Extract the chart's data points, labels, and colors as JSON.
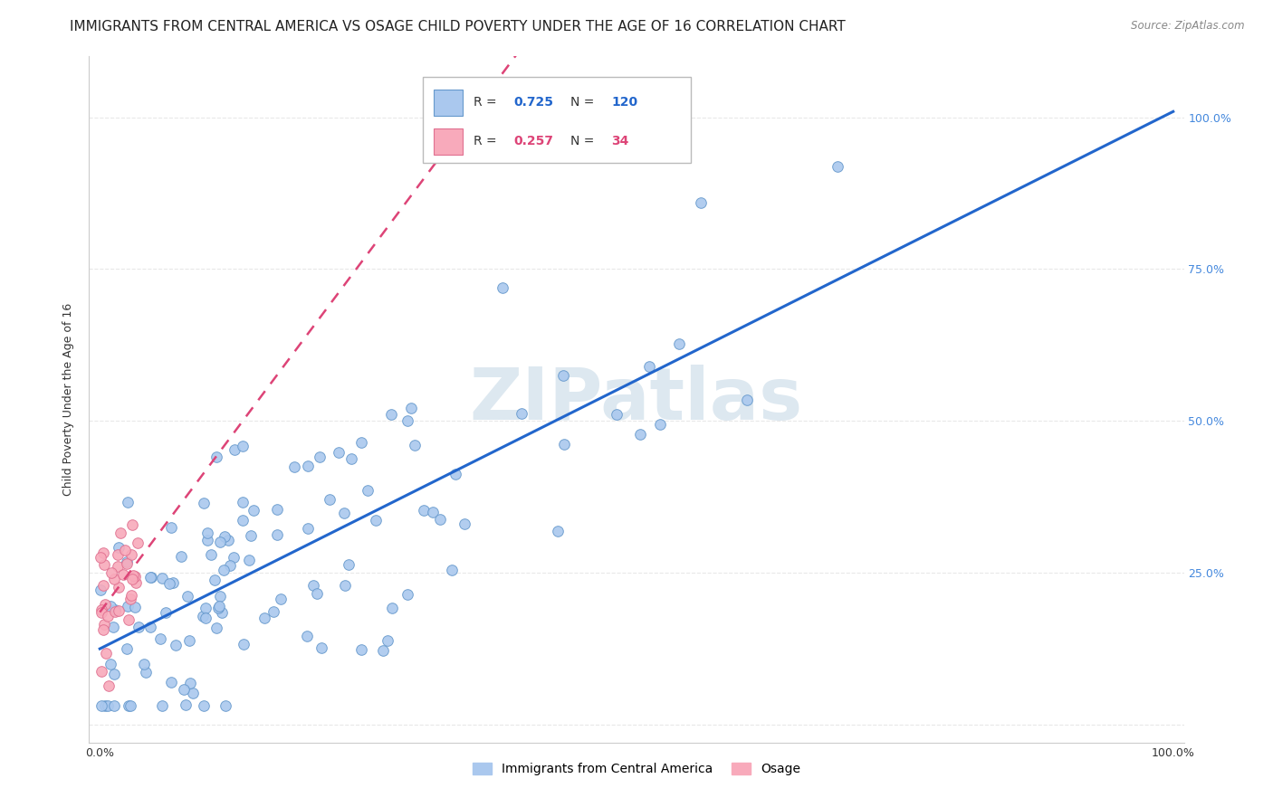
{
  "title": "IMMIGRANTS FROM CENTRAL AMERICA VS OSAGE CHILD POVERTY UNDER THE AGE OF 16 CORRELATION CHART",
  "source": "Source: ZipAtlas.com",
  "ylabel": "Child Poverty Under the Age of 16",
  "legend1_label": "Immigrants from Central America",
  "legend2_label": "Osage",
  "R1": 0.725,
  "N1": 120,
  "R2": 0.257,
  "N2": 34,
  "scatter1_color": "#aac8ee",
  "scatter1_edge": "#6699cc",
  "scatter2_color": "#f8aabb",
  "scatter2_edge": "#e07090",
  "line1_color": "#2266cc",
  "line2_color": "#dd4477",
  "line2_dash_color": "#dd88aa",
  "background_color": "#ffffff",
  "watermark": "ZIPatlas",
  "watermark_color": "#dde8f0",
  "grid_color": "#e8e8e8",
  "title_fontsize": 11,
  "axis_label_fontsize": 9,
  "tick_fontsize": 9,
  "right_tick_color": "#4488dd"
}
